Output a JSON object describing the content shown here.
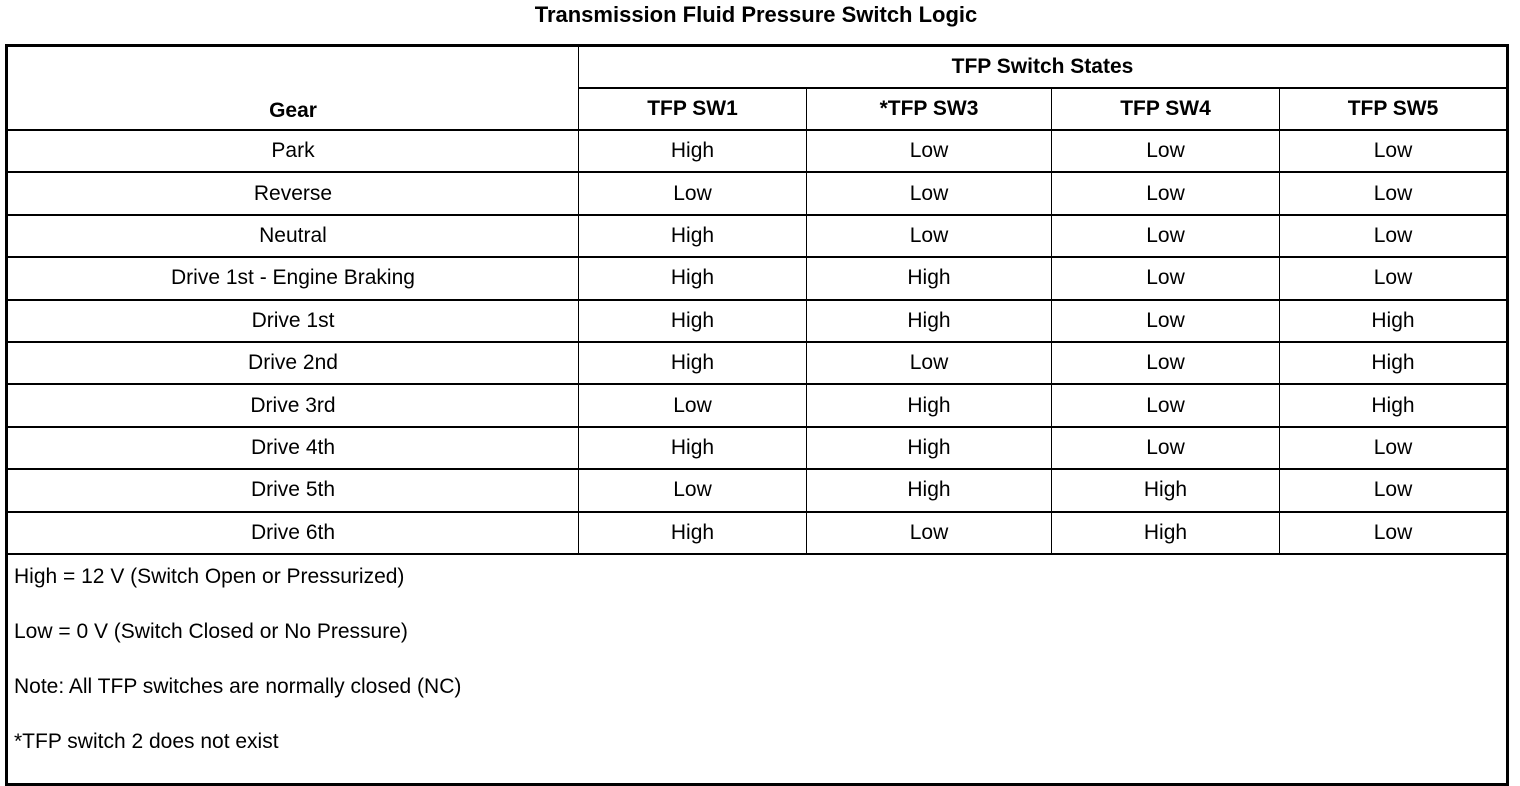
{
  "title": "Transmission Fluid Pressure Switch Logic",
  "table": {
    "gear_header": "Gear",
    "group_header": "TFP Switch States",
    "columns": [
      "TFP SW1",
      "*TFP SW3",
      "TFP SW4",
      "TFP SW5"
    ],
    "rows": [
      {
        "gear": "Park",
        "values": [
          "High",
          "Low",
          "Low",
          "Low"
        ]
      },
      {
        "gear": "Reverse",
        "values": [
          "Low",
          "Low",
          "Low",
          "Low"
        ]
      },
      {
        "gear": "Neutral",
        "values": [
          "High",
          "Low",
          "Low",
          "Low"
        ]
      },
      {
        "gear": "Drive 1st - Engine Braking",
        "values": [
          "High",
          "High",
          "Low",
          "Low"
        ]
      },
      {
        "gear": "Drive 1st",
        "values": [
          "High",
          "High",
          "Low",
          "High"
        ]
      },
      {
        "gear": "Drive 2nd",
        "values": [
          "High",
          "Low",
          "Low",
          "High"
        ]
      },
      {
        "gear": "Drive 3rd",
        "values": [
          "Low",
          "High",
          "Low",
          "High"
        ]
      },
      {
        "gear": "Drive 4th",
        "values": [
          "High",
          "High",
          "Low",
          "Low"
        ]
      },
      {
        "gear": "Drive 5th",
        "values": [
          "Low",
          "High",
          "High",
          "Low"
        ]
      },
      {
        "gear": "Drive 6th",
        "values": [
          "High",
          "Low",
          "High",
          "Low"
        ]
      }
    ],
    "notes": [
      "High = 12 V (Switch Open or Pressurized)",
      "Low = 0 V (Switch Closed or No Pressure)",
      "Note: All TFP switches are normally closed (NC)",
      "*TFP switch 2 does not exist"
    ]
  }
}
